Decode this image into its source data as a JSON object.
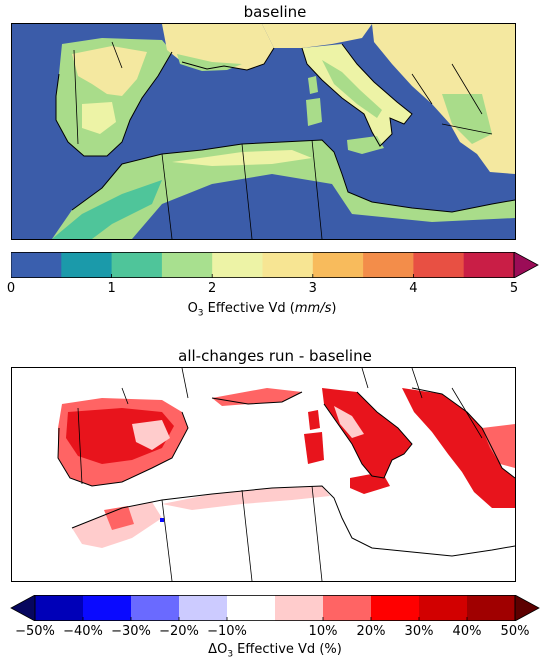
{
  "top_panel": {
    "title": "baseline",
    "colorbar": {
      "label_prefix": "O",
      "label_sub": "3",
      "label_middle": " Effective Vd (",
      "label_unit": "mm/s",
      "label_suffix": ")",
      "ticks": [
        "0",
        "1",
        "2",
        "3",
        "4",
        "5"
      ],
      "tick_values": [
        0,
        1,
        2,
        3,
        4,
        5
      ],
      "range": [
        0,
        5
      ],
      "extend": "max",
      "colors": [
        "#3a5fae",
        "#1b9aaa",
        "#4fc59a",
        "#a8e08f",
        "#edf3a6",
        "#f7e593",
        "#f8bb5c",
        "#f38d4a",
        "#e85043",
        "#c91e46",
        "#9b0c57"
      ]
    }
  },
  "bottom_panel": {
    "title": "all-changes run - baseline",
    "colorbar": {
      "label_prefix": "ΔO",
      "label_sub": "3",
      "label_suffix": " Effective Vd (%)",
      "ticks": [
        "−50%",
        "−40%",
        "−30%",
        "−20%",
        "−10%",
        "10%",
        "20%",
        "30%",
        "40%",
        "50%"
      ],
      "tick_values": [
        -50,
        -40,
        -30,
        -20,
        -10,
        10,
        20,
        30,
        40,
        50
      ],
      "range": [
        -50,
        50
      ],
      "extend": "both",
      "colors": [
        "#06065e",
        "#0000b8",
        "#0a0aff",
        "#6a6aff",
        "#cccbff",
        "#ffffff",
        "#ffcccc",
        "#ff6464",
        "#ff0000",
        "#d20000",
        "#a00000",
        "#5c0000"
      ]
    }
  },
  "colors": {
    "sea": "#3b5ca9",
    "land_mid": "#a9dc8a",
    "land_high": "#f4e8a0",
    "increase": "#e8141c"
  }
}
